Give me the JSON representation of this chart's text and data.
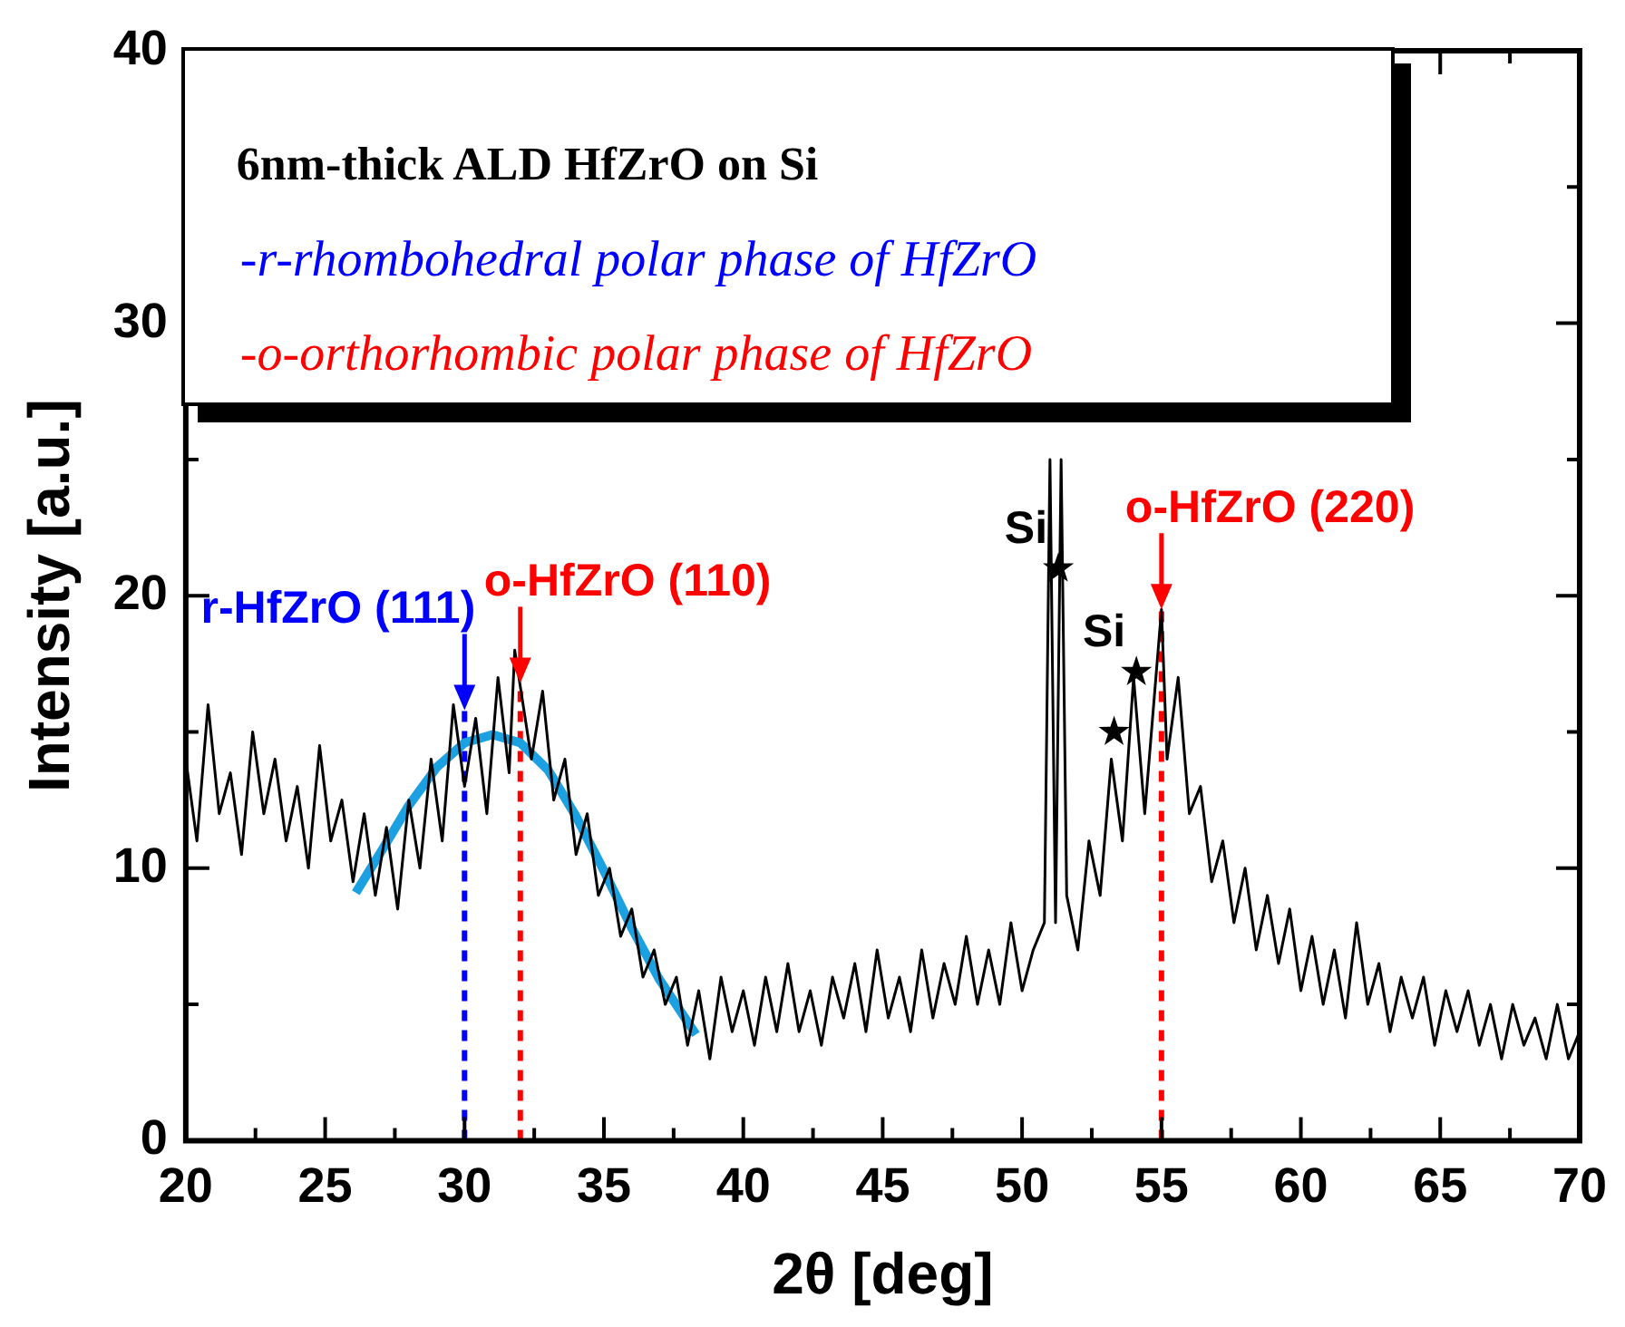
{
  "chart_data": {
    "type": "line",
    "xlabel": "2θ [deg]",
    "ylabel": "Intensity [a.u.]",
    "xlim": [
      20,
      70
    ],
    "xticks": [
      20,
      {
        "value": 22.5,
        "label": null
      },
      25,
      {
        "value": 27.5,
        "label": null
      },
      30,
      {
        "value": 32.5,
        "label": null
      },
      35,
      {
        "value": 37.5,
        "label": null
      },
      40,
      {
        "value": 42.5,
        "label": null
      },
      45,
      {
        "value": 47.5,
        "label": null
      },
      50,
      {
        "value": 52.5,
        "label": null
      },
      55,
      {
        "value": 57.5,
        "label": null
      },
      60,
      {
        "value": 62.5,
        "label": null
      },
      65,
      {
        "value": 67.5,
        "label": null
      },
      70
    ],
    "ylim": [
      0,
      40
    ],
    "yticks": [
      0,
      {
        "value": 5,
        "label": null
      },
      10,
      {
        "value": 15,
        "label": null
      },
      20,
      {
        "value": 25,
        "label": null
      },
      30,
      {
        "value": 35,
        "label": null
      },
      40
    ],
    "grid": false,
    "legend": false,
    "series": [
      {
        "type": "line",
        "color": "#000000",
        "marker": "none",
        "x": [
          20.0,
          20.4,
          20.8,
          21.2,
          21.6,
          22.0,
          22.4,
          22.8,
          23.2,
          23.6,
          24.0,
          24.4,
          24.8,
          25.2,
          25.6,
          26.0,
          26.4,
          26.8,
          27.2,
          27.6,
          28.0,
          28.4,
          28.8,
          29.2,
          29.6,
          30.0,
          30.4,
          30.8,
          31.2,
          31.6,
          31.8,
          32.4,
          32.8,
          33.2,
          33.6,
          34.0,
          34.4,
          34.8,
          35.2,
          35.6,
          36.0,
          36.4,
          36.8,
          37.2,
          37.6,
          38.0,
          38.4,
          38.8,
          39.2,
          39.6,
          40.0,
          40.4,
          40.8,
          41.2,
          41.6,
          42.0,
          42.4,
          42.8,
          43.2,
          43.6,
          44.0,
          44.4,
          44.8,
          45.2,
          45.6,
          46.0,
          46.4,
          46.8,
          47.2,
          47.6,
          48.0,
          48.4,
          48.8,
          49.2,
          49.6,
          50.0,
          50.4,
          50.8,
          51.0,
          51.2,
          51.4,
          51.6,
          52.0,
          52.4,
          52.8,
          53.2,
          53.6,
          54.0,
          54.4,
          54.8,
          55.0,
          55.2,
          55.6,
          56.0,
          56.4,
          56.8,
          57.2,
          57.6,
          58.0,
          58.4,
          58.8,
          59.2,
          59.6,
          60.0,
          60.4,
          60.8,
          61.2,
          61.6,
          62.0,
          62.4,
          62.8,
          63.2,
          63.6,
          64.0,
          64.4,
          64.8,
          65.2,
          65.6,
          66.0,
          66.4,
          66.8,
          67.2,
          67.6,
          68.0,
          68.4,
          68.8,
          69.2,
          69.6,
          70.0
        ],
        "values": [
          14,
          11,
          16,
          12,
          13.5,
          10.5,
          15,
          12,
          14,
          11,
          13,
          10,
          14.5,
          11,
          12.5,
          9.5,
          12,
          9,
          11.5,
          8.5,
          12.5,
          10,
          14,
          11,
          16,
          13,
          15.5,
          12,
          17,
          13.5,
          18,
          14,
          16.5,
          12.5,
          14,
          10.5,
          12,
          9,
          10,
          7.5,
          8.5,
          6,
          7,
          5,
          6,
          3.5,
          5.5,
          3,
          6,
          4,
          5.5,
          3.5,
          6,
          4,
          6.5,
          4,
          5.5,
          3.5,
          6,
          4.5,
          6.5,
          4,
          7,
          4.5,
          6,
          4,
          7,
          4.5,
          6.5,
          5,
          7.5,
          5,
          7,
          5,
          8,
          5.5,
          7,
          8,
          25,
          8,
          25,
          9,
          7,
          11,
          9,
          14,
          11,
          17,
          12,
          17,
          19.5,
          14,
          17,
          12,
          13,
          9.5,
          11,
          8,
          10,
          7,
          9,
          6.5,
          8.5,
          5.5,
          7.5,
          5,
          7,
          4.5,
          8,
          5,
          6.5,
          4,
          6,
          4.5,
          6,
          3.5,
          5.5,
          4,
          5.5,
          3.5,
          5,
          3,
          5,
          3.5,
          4.5,
          3,
          5,
          3,
          4
        ]
      },
      {
        "type": "line",
        "color": "#1ba1e2",
        "marker": "none",
        "x": [
          26.1,
          27,
          28,
          29,
          30,
          31,
          32,
          33,
          34,
          35,
          36,
          37,
          38.3
        ],
        "values": [
          9.1,
          10.6,
          12.3,
          13.7,
          14.6,
          14.9,
          14.6,
          13.6,
          11.9,
          9.9,
          7.8,
          5.9,
          3.9
        ]
      },
      {
        "type": "scatter",
        "color": "#000000",
        "marker": "star",
        "x": [
          51.3,
          54.1,
          53.3
        ],
        "values": [
          21,
          17.2,
          15
        ]
      }
    ],
    "ref_lines": [
      {
        "axis": "x",
        "value": 30,
        "color": "#0000ff",
        "line_style": "dashed"
      },
      {
        "axis": "x",
        "value": 32,
        "color": "#ff0000",
        "line_style": "dashed"
      },
      {
        "axis": "x",
        "value": 55,
        "color": "#ff0000",
        "line_style": "dashed"
      }
    ],
    "annotations": [
      "6nm-thick ALD HfZrO on Si",
      "-r-rhombohedral polar phase of HfZrO",
      "-o-orthorhombic polar phase of HfZrO",
      {
        "text": "r-HfZrO (111)",
        "x": 30,
        "y": 15.8
      },
      {
        "text": "o-HfZrO (110)",
        "x": 32,
        "y": 16.8
      },
      {
        "text": "o-HfZrO (220)",
        "x": 55,
        "y": 19.5
      },
      {
        "text": "Si",
        "x": 51.3,
        "y": 21
      },
      {
        "text": "Si",
        "x": 54.1,
        "y": 17.2
      }
    ]
  }
}
